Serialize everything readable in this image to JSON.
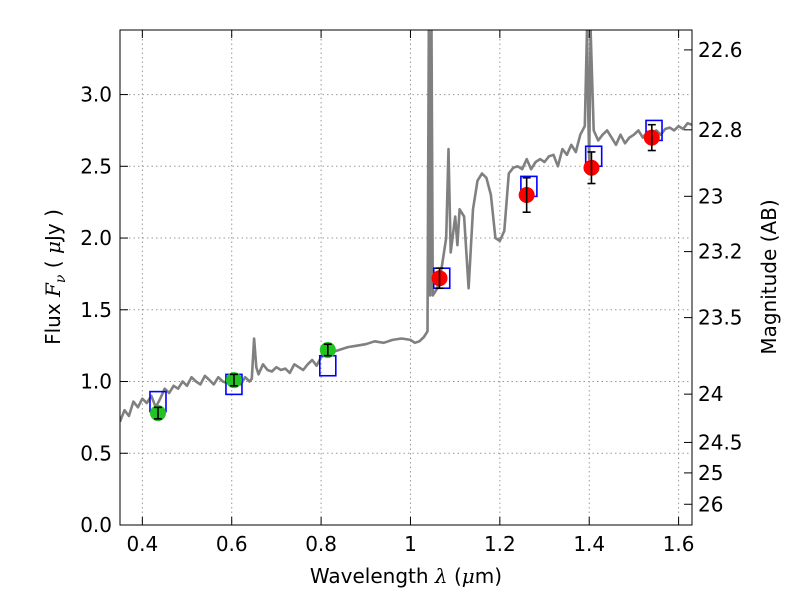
{
  "chart_data": {
    "type": "line+scatter",
    "xlabel_prefix": "Wavelength",
    "xlabel_symbol": "λ",
    "xlabel_unit_open": "(",
    "xlabel_unit_mu": "μ",
    "xlabel_unit_rest": "m)",
    "ylabel_prefix": "Flux",
    "ylabel_symbol_F": "F",
    "ylabel_symbol_nu": "ν",
    "ylabel_unit_open": "(",
    "ylabel_unit_mu": "μ",
    "ylabel_unit_rest": "Jy )",
    "y2label": "Magnitude (AB)",
    "xlim": [
      0.35,
      1.63
    ],
    "ylim": [
      0.0,
      3.45
    ],
    "grid": true,
    "x_ticks": [
      0.4,
      0.6,
      0.8,
      1.0,
      1.2,
      1.4,
      1.6
    ],
    "x_tick_labels": [
      "0.4",
      "0.6",
      "0.8",
      "1",
      "1.2",
      "1.4",
      "1.6"
    ],
    "y_ticks": [
      0.0,
      0.5,
      1.0,
      1.5,
      2.0,
      2.5,
      3.0
    ],
    "y_tick_labels": [
      "0.0",
      "0.5",
      "1.0",
      "1.5",
      "2.0",
      "2.5",
      "3.0"
    ],
    "y2_ticks": [
      22.6,
      22.8,
      23.0,
      23.2,
      23.5,
      24.0,
      24.5,
      25.0,
      26.0
    ],
    "y2_tick_labels": [
      "22.6",
      "22.8",
      "23",
      "23.2",
      "23.5",
      "24",
      "24.5",
      "25",
      "26"
    ],
    "colors": {
      "model": "#808080",
      "model_box": "#0000ff",
      "optical": "#22c322",
      "nir": "#ff0000",
      "errorbar": "#000000",
      "grid": "#9a9a9a"
    },
    "series": [
      {
        "name": "model spectrum",
        "kind": "line",
        "x": [
          0.35,
          0.36,
          0.37,
          0.38,
          0.39,
          0.4,
          0.41,
          0.42,
          0.43,
          0.44,
          0.45,
          0.46,
          0.47,
          0.48,
          0.49,
          0.5,
          0.51,
          0.52,
          0.53,
          0.54,
          0.55,
          0.56,
          0.57,
          0.58,
          0.59,
          0.6,
          0.61,
          0.62,
          0.63,
          0.64,
          0.645,
          0.65,
          0.655,
          0.66,
          0.67,
          0.68,
          0.69,
          0.7,
          0.71,
          0.72,
          0.73,
          0.74,
          0.75,
          0.76,
          0.77,
          0.78,
          0.79,
          0.8,
          0.82,
          0.84,
          0.86,
          0.88,
          0.9,
          0.92,
          0.94,
          0.96,
          0.98,
          1.0,
          1.01,
          1.02,
          1.03,
          1.038,
          1.041,
          1.044,
          1.047,
          1.05,
          1.06,
          1.07,
          1.08,
          1.085,
          1.09,
          1.1,
          1.105,
          1.11,
          1.12,
          1.13,
          1.14,
          1.15,
          1.16,
          1.17,
          1.18,
          1.19,
          1.2,
          1.21,
          1.22,
          1.23,
          1.24,
          1.25,
          1.26,
          1.27,
          1.28,
          1.29,
          1.3,
          1.31,
          1.32,
          1.33,
          1.34,
          1.35,
          1.36,
          1.37,
          1.38,
          1.39,
          1.395,
          1.398,
          1.4,
          1.403,
          1.41,
          1.42,
          1.43,
          1.44,
          1.45,
          1.46,
          1.47,
          1.48,
          1.49,
          1.5,
          1.51,
          1.52,
          1.53,
          1.54,
          1.55,
          1.56,
          1.57,
          1.58,
          1.59,
          1.6,
          1.61,
          1.62,
          1.63
        ],
        "y": [
          0.72,
          0.8,
          0.76,
          0.86,
          0.82,
          0.88,
          0.85,
          0.9,
          0.82,
          0.88,
          0.95,
          0.92,
          0.97,
          0.95,
          1.0,
          0.97,
          1.03,
          1.0,
          0.98,
          1.04,
          1.01,
          0.98,
          1.03,
          1.0,
          0.99,
          1.01,
          1.02,
          0.98,
          1.03,
          1.0,
          1.02,
          1.3,
          1.1,
          1.05,
          1.12,
          1.08,
          1.07,
          1.1,
          1.08,
          1.09,
          1.06,
          1.12,
          1.1,
          1.08,
          1.12,
          1.15,
          1.11,
          1.17,
          1.2,
          1.22,
          1.24,
          1.25,
          1.26,
          1.28,
          1.27,
          1.29,
          1.3,
          1.29,
          1.27,
          1.28,
          1.31,
          1.35,
          3.45,
          1.6,
          3.45,
          1.6,
          1.65,
          1.8,
          2.0,
          2.62,
          1.9,
          2.15,
          1.95,
          2.2,
          2.15,
          1.65,
          2.2,
          2.4,
          2.45,
          2.42,
          2.3,
          2.0,
          1.98,
          2.05,
          2.45,
          2.49,
          2.5,
          2.48,
          2.55,
          2.48,
          2.53,
          2.55,
          2.53,
          2.57,
          2.58,
          2.5,
          2.62,
          2.58,
          2.65,
          2.6,
          2.72,
          2.78,
          3.45,
          2.85,
          2.55,
          3.45,
          2.75,
          2.68,
          2.72,
          2.75,
          2.7,
          2.65,
          2.72,
          2.66,
          2.7,
          2.72,
          2.75,
          2.7,
          2.74,
          2.68,
          2.75,
          2.72,
          2.76,
          2.77,
          2.75,
          2.78,
          2.76,
          2.8,
          2.79
        ],
        "color": "#808080"
      },
      {
        "name": "model photometry",
        "kind": "open-square",
        "x": [
          0.435,
          0.605,
          0.815,
          1.07,
          1.265,
          1.41,
          1.545
        ],
        "y": [
          0.86,
          0.98,
          1.11,
          1.72,
          2.36,
          2.57,
          2.75
        ],
        "color": "#0000ff"
      },
      {
        "name": "optical photometry",
        "kind": "point",
        "x": [
          0.435,
          0.605,
          0.815
        ],
        "y": [
          0.78,
          1.01,
          1.22
        ],
        "yerr": [
          0.04,
          0.04,
          0.04
        ],
        "color": "#22c322"
      },
      {
        "name": "near-IR photometry",
        "kind": "point",
        "x": [
          1.065,
          1.26,
          1.405,
          1.54
        ],
        "y": [
          1.72,
          2.3,
          2.49,
          2.7
        ],
        "yerr": [
          0.07,
          0.12,
          0.11,
          0.09
        ],
        "color": "#ff0000"
      }
    ]
  }
}
